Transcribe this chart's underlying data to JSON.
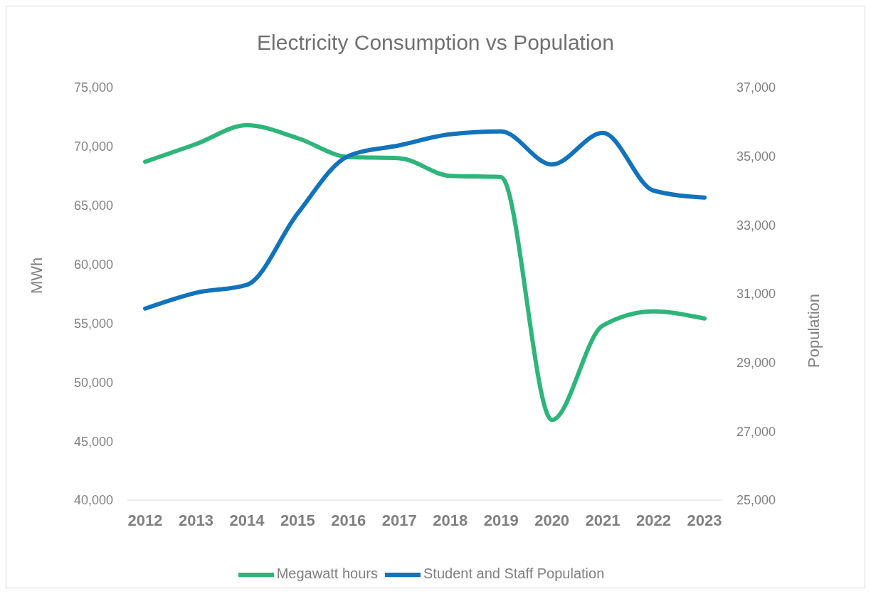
{
  "chart_data": {
    "type": "line",
    "title": "Electricity Consumption vs Population",
    "ylabel": "MWh",
    "y2label": "Population",
    "categories": [
      "2012",
      "2013",
      "2014",
      "2015",
      "2016",
      "2017",
      "2018",
      "2019",
      "2020",
      "2021",
      "2022",
      "2023"
    ],
    "series": [
      {
        "name": "Megawatt hours",
        "color": "#2eb57a",
        "values": [
          68700,
          70200,
          71800,
          70700,
          69100,
          69000,
          67500,
          67400,
          46800,
          54800,
          56000,
          55400
        ]
      },
      {
        "name": "Student and Staff Population",
        "color": "#1173bb",
        "axis": "y2",
        "values": [
          30570,
          31030,
          31260,
          33340,
          35010,
          35320,
          35640,
          35720,
          34760,
          35680,
          34000,
          33800
        ]
      }
    ],
    "ylim": [
      40000,
      75000
    ],
    "yticks": [
      {
        "value": 40000,
        "label": "40,000"
      },
      {
        "value": 45000,
        "label": "45,000"
      },
      {
        "value": 50000,
        "label": "50,000"
      },
      {
        "value": 55000,
        "label": "55,000"
      },
      {
        "value": 60000,
        "label": "60,000"
      },
      {
        "value": 65000,
        "label": "65,000"
      },
      {
        "value": 70000,
        "label": "70,000"
      },
      {
        "value": 75000,
        "label": "75,000"
      }
    ],
    "y2lim": [
      25000,
      37000
    ],
    "y2ticks": [
      {
        "value": 25000,
        "label": "25,000"
      },
      {
        "value": 27000,
        "label": "27,000"
      },
      {
        "value": 29000,
        "label": "29,000"
      },
      {
        "value": 31000,
        "label": "31,000"
      },
      {
        "value": 33000,
        "label": "33,000"
      },
      {
        "value": 35000,
        "label": "35,000"
      },
      {
        "value": 37000,
        "label": "37,000"
      }
    ],
    "grid": false,
    "legend": "bottom",
    "marker": "none",
    "line_style": "solid"
  }
}
